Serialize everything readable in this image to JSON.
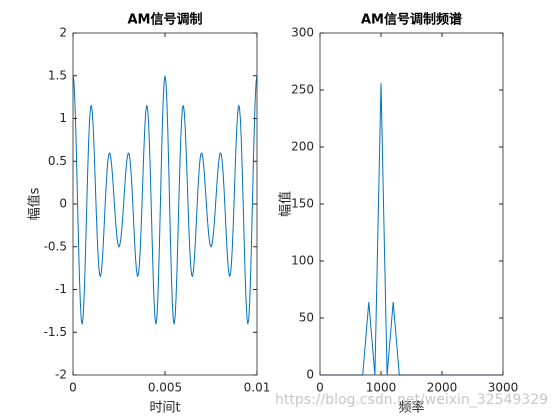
{
  "chart_data": [
    {
      "type": "line",
      "title": "AM信号调制",
      "xlabel": "时间t",
      "ylabel": "幅值s",
      "color": "#0072bd",
      "xlim": [
        0,
        0.01
      ],
      "xticks": [
        0,
        0.005,
        0.01
      ],
      "ylim": [
        -2,
        2
      ],
      "yticks": [
        -2,
        -1.5,
        -1,
        -0.5,
        0,
        0.5,
        1,
        1.5,
        2
      ],
      "x": [
        0,
        5e-05,
        0.0001,
        0.00015,
        0.0002,
        0.00025,
        0.0003,
        0.00035,
        0.0004,
        0.00045,
        0.0005,
        0.00055,
        0.0006,
        0.00065,
        0.0007,
        0.00075,
        0.0008,
        0.00085,
        0.0009,
        0.00095,
        0.001,
        0.00105,
        0.0011,
        0.00115,
        0.0012,
        0.00125,
        0.0013,
        0.00135,
        0.0014,
        0.00145,
        0.0015,
        0.00155,
        0.0016,
        0.00165,
        0.0017,
        0.00175,
        0.0018,
        0.00185,
        0.0019,
        0.00195,
        0.002,
        0.00205,
        0.0021,
        0.00215,
        0.0022,
        0.00225,
        0.0023,
        0.00235,
        0.0024,
        0.00245,
        0.0025,
        0.00255,
        0.0026,
        0.00265,
        0.0027,
        0.00275,
        0.0028,
        0.00285,
        0.0029,
        0.00295,
        0.003,
        0.00305,
        0.0031,
        0.00315,
        0.0032,
        0.00325,
        0.0033,
        0.00335,
        0.0034,
        0.00345,
        0.0035,
        0.00355,
        0.0036,
        0.00365,
        0.0037,
        0.00375,
        0.0038,
        0.00385,
        0.0039,
        0.00395,
        0.004,
        0.00405,
        0.0041,
        0.00415,
        0.0042,
        0.00425,
        0.0043,
        0.00435,
        0.0044,
        0.00445,
        0.0045,
        0.00455,
        0.0046,
        0.00465,
        0.0047,
        0.00475,
        0.0048,
        0.00485,
        0.0049,
        0.00495,
        0.005,
        0.00505,
        0.0051,
        0.00515,
        0.0052,
        0.00525,
        0.0053,
        0.00535,
        0.0054,
        0.00545,
        0.0055,
        0.00555,
        0.0056,
        0.00565,
        0.0057,
        0.00575,
        0.0058,
        0.00585,
        0.0059,
        0.00595,
        0.006,
        0.00605,
        0.0061,
        0.00615,
        0.0062,
        0.00625,
        0.0063,
        0.00635,
        0.0064,
        0.00645,
        0.0065,
        0.00655,
        0.0066,
        0.00665,
        0.0067,
        0.00675,
        0.0068,
        0.00685,
        0.0069,
        0.00695,
        0.007,
        0.00705,
        0.0071,
        0.00715,
        0.0072,
        0.00725,
        0.0073,
        0.00735,
        0.0074,
        0.00745,
        0.0075,
        0.00755,
        0.0076,
        0.00765,
        0.0077,
        0.00775,
        0.0078,
        0.00785,
        0.0079,
        0.00795,
        0.008,
        0.00805,
        0.0081,
        0.00815,
        0.0082,
        0.00825,
        0.0083,
        0.00835,
        0.0084,
        0.00845,
        0.0085,
        0.00855,
        0.0086,
        0.00865,
        0.0087,
        0.00875,
        0.0088,
        0.00885,
        0.0089,
        0.00895,
        0.009,
        0.00905,
        0.0091,
        0.00915,
        0.0092,
        0.00925,
        0.0093,
        0.00935,
        0.0094,
        0.00945,
        0.0095,
        0.00955,
        0.0096,
        0.00965,
        0.0097,
        0.00975,
        0.0098,
        0.00985,
        0.0099,
        0.00995,
        0.01
      ],
      "values": [
        1.5,
        1.426,
        1.21,
        0.876,
        0.459,
        0,
        -0.453,
        -0.854,
        -1.163,
        -1.353,
        -1.405,
        -1.317,
        -1.104,
        -0.789,
        -0.408,
        0,
        0.392,
        0.729,
        0.981,
        1.126,
        1.155,
        1.069,
        0.885,
        0.625,
        0.319,
        0,
        -0.299,
        -0.551,
        -0.733,
        -0.833,
        -0.845,
        -0.776,
        -0.637,
        -0.446,
        -0.226,
        0,
        0.211,
        0.387,
        0.514,
        0.585,
        0.595,
        0.55,
        0.455,
        0.322,
        0.165,
        0,
        -0.159,
        -0.299,
        -0.408,
        -0.476,
        -0.5,
        -0.476,
        -0.408,
        -0.299,
        -0.159,
        0,
        0.165,
        0.322,
        0.455,
        0.55,
        0.595,
        0.585,
        0.514,
        0.387,
        0.211,
        0,
        -0.226,
        -0.446,
        -0.637,
        -0.776,
        -0.845,
        -0.833,
        -0.733,
        -0.551,
        -0.299,
        0,
        0.319,
        0.625,
        0.885,
        1.069,
        1.155,
        1.126,
        0.981,
        0.729,
        0.392,
        0,
        -0.408,
        -0.789,
        -1.104,
        -1.317,
        -1.405,
        -1.353,
        -1.163,
        -0.854,
        -0.453,
        0,
        0.459,
        0.876,
        1.21,
        1.426,
        1.5,
        1.426,
        1.21,
        0.876,
        0.459,
        0,
        -0.453,
        -0.854,
        -1.163,
        -1.353,
        -1.405,
        -1.317,
        -1.104,
        -0.789,
        -0.408,
        0,
        0.392,
        0.729,
        0.981,
        1.126,
        1.155,
        1.069,
        0.885,
        0.625,
        0.319,
        0,
        -0.299,
        -0.551,
        -0.733,
        -0.833,
        -0.845,
        -0.776,
        -0.637,
        -0.446,
        -0.226,
        0,
        0.211,
        0.387,
        0.514,
        0.585,
        0.595,
        0.55,
        0.455,
        0.322,
        0.165,
        0,
        -0.159,
        -0.299,
        -0.408,
        -0.476,
        -0.5,
        -0.476,
        -0.408,
        -0.299,
        -0.159,
        0,
        0.165,
        0.322,
        0.455,
        0.55,
        0.595,
        0.585,
        0.514,
        0.387,
        0.211,
        0,
        -0.226,
        -0.446,
        -0.637,
        -0.776,
        -0.845,
        -0.833,
        -0.733,
        -0.551,
        -0.299,
        0,
        0.319,
        0.625,
        0.885,
        1.069,
        1.155,
        1.126,
        0.981,
        0.729,
        0.392,
        0,
        -0.408,
        -0.789,
        -1.104,
        -1.317,
        -1.405,
        -1.353,
        -1.163,
        -0.854,
        -0.453,
        0,
        0.459,
        0.876,
        1.21,
        1.426,
        1.5
      ]
    },
    {
      "type": "line",
      "title": "AM信号调制频谱",
      "xlabel": "频率",
      "ylabel": "幅值",
      "color": "#0072bd",
      "xlim": [
        0,
        3000
      ],
      "xticks": [
        0,
        1000,
        2000,
        3000
      ],
      "ylim": [
        0,
        300
      ],
      "yticks": [
        0,
        50,
        100,
        150,
        200,
        250,
        300
      ],
      "x": [
        0,
        100,
        200,
        300,
        400,
        500,
        600,
        700,
        800,
        900,
        1000,
        1100,
        1200,
        1300,
        1400,
        1500,
        1600,
        1700,
        1800,
        1900,
        2000,
        2100,
        2200,
        2300,
        2400,
        2500,
        2600,
        2700,
        2800,
        2900,
        3000
      ],
      "values": [
        0,
        0,
        0,
        0,
        0,
        0,
        0,
        0,
        64,
        0,
        256,
        0,
        64,
        0,
        0,
        0,
        0,
        0,
        0,
        0,
        0,
        0,
        0,
        0,
        0,
        0,
        0,
        0,
        0,
        0,
        0
      ]
    }
  ],
  "watermark": "https://blog.csdn.net/weixin_32549329"
}
